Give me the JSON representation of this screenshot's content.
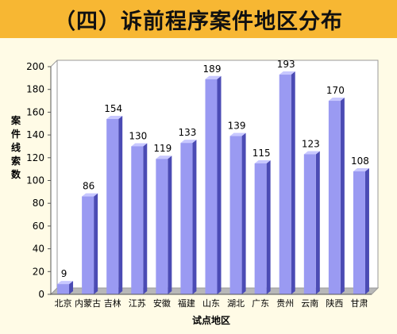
{
  "title": "（四）诉前程序案件地区分布",
  "colors": {
    "title_bar": "#f7b733",
    "background": "#fffbe6",
    "bar_front": "#9a9af2",
    "bar_side": "#4b4bb4",
    "bar_top": "#c8c8ff"
  },
  "chart_data": {
    "type": "bar",
    "categories": [
      "北京",
      "内蒙古",
      "吉林",
      "江苏",
      "安徽",
      "福建",
      "山东",
      "湖北",
      "广东",
      "贵州",
      "云南",
      "陕西",
      "甘肃"
    ],
    "values": [
      9,
      86,
      154,
      130,
      119,
      133,
      189,
      139,
      115,
      193,
      123,
      170,
      108
    ],
    "xlabel": "试点地区",
    "ylabel": "案件线索数",
    "ylim": [
      0,
      200
    ],
    "yticks": [
      0,
      20,
      40,
      60,
      80,
      100,
      120,
      140,
      160,
      180,
      200
    ],
    "grid": false,
    "data_labels": true
  }
}
